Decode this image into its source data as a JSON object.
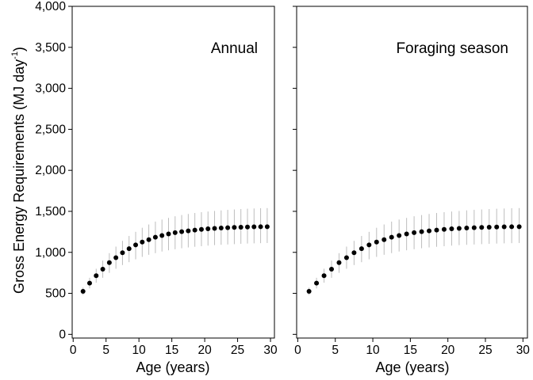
{
  "chart_data": {
    "type": "scatter",
    "ylabel": "Gross Energy Requirements (MJ day",
    "ylabel_superscript": "-1",
    "ylabel_close": ")",
    "xlim": [
      0,
      30
    ],
    "ylim": [
      0,
      4000
    ],
    "x_ticks": [
      0,
      5,
      10,
      15,
      20,
      25,
      30
    ],
    "x_tick_labels": [
      "0",
      "5",
      "10",
      "15",
      "20",
      "25",
      "30"
    ],
    "y_ticks": [
      0,
      500,
      1000,
      1500,
      2000,
      2500,
      3000,
      3500,
      4000
    ],
    "y_tick_labels": [
      "0",
      "500",
      "1,000",
      "1,500",
      "2,000",
      "2,500",
      "3,000",
      "3,500",
      "4,000"
    ],
    "grid": false,
    "point_color": "#000000",
    "errorbar_color": "#bdbdbd",
    "panels": [
      {
        "title": "Annual",
        "xlabel": "Age (years)",
        "x": [
          1.5,
          2.5,
          3.5,
          4.5,
          5.5,
          6.5,
          7.5,
          8.5,
          9.5,
          10.5,
          11.5,
          12.5,
          13.5,
          14.5,
          15.5,
          16.5,
          17.5,
          18.5,
          19.5,
          20.5,
          21.5,
          22.5,
          23.5,
          24.5,
          25.5,
          26.5,
          27.5,
          28.5,
          29.5
        ],
        "y": [
          525,
          625,
          715,
          795,
          875,
          935,
          995,
          1045,
          1090,
          1125,
          1155,
          1185,
          1205,
          1225,
          1240,
          1252,
          1262,
          1272,
          1280,
          1287,
          1292,
          1297,
          1301,
          1304,
          1307,
          1309,
          1311,
          1312,
          1313
        ],
        "y_low": [
          480,
          560,
          630,
          690,
          750,
          800,
          845,
          880,
          915,
          945,
          970,
          990,
          1010,
          1025,
          1038,
          1050,
          1060,
          1068,
          1075,
          1082,
          1088,
          1092,
          1096,
          1100,
          1104,
          1107,
          1110,
          1112,
          1114
        ],
        "y_high": [
          570,
          690,
          800,
          900,
          990,
          1070,
          1140,
          1200,
          1250,
          1300,
          1340,
          1375,
          1400,
          1420,
          1440,
          1455,
          1468,
          1480,
          1490,
          1498,
          1505,
          1512,
          1518,
          1523,
          1528,
          1532,
          1535,
          1538,
          1540
        ]
      },
      {
        "title": "Foraging season",
        "xlabel": "Age (years)",
        "x": [
          1.5,
          2.5,
          3.5,
          4.5,
          5.5,
          6.5,
          7.5,
          8.5,
          9.5,
          10.5,
          11.5,
          12.5,
          13.5,
          14.5,
          15.5,
          16.5,
          17.5,
          18.5,
          19.5,
          20.5,
          21.5,
          22.5,
          23.5,
          24.5,
          25.5,
          26.5,
          27.5,
          28.5,
          29.5
        ],
        "y": [
          525,
          625,
          715,
          795,
          875,
          935,
          995,
          1045,
          1090,
          1125,
          1155,
          1185,
          1205,
          1225,
          1240,
          1252,
          1262,
          1272,
          1280,
          1287,
          1292,
          1297,
          1301,
          1304,
          1307,
          1309,
          1311,
          1312,
          1313
        ],
        "y_low": [
          480,
          560,
          630,
          690,
          750,
          800,
          845,
          880,
          915,
          945,
          970,
          990,
          1010,
          1025,
          1038,
          1050,
          1060,
          1068,
          1075,
          1082,
          1088,
          1092,
          1096,
          1100,
          1104,
          1107,
          1110,
          1112,
          1114
        ],
        "y_high": [
          570,
          690,
          800,
          900,
          990,
          1070,
          1140,
          1200,
          1250,
          1300,
          1340,
          1375,
          1400,
          1420,
          1440,
          1455,
          1468,
          1480,
          1490,
          1498,
          1505,
          1512,
          1518,
          1523,
          1528,
          1532,
          1535,
          1538,
          1540
        ]
      }
    ]
  }
}
